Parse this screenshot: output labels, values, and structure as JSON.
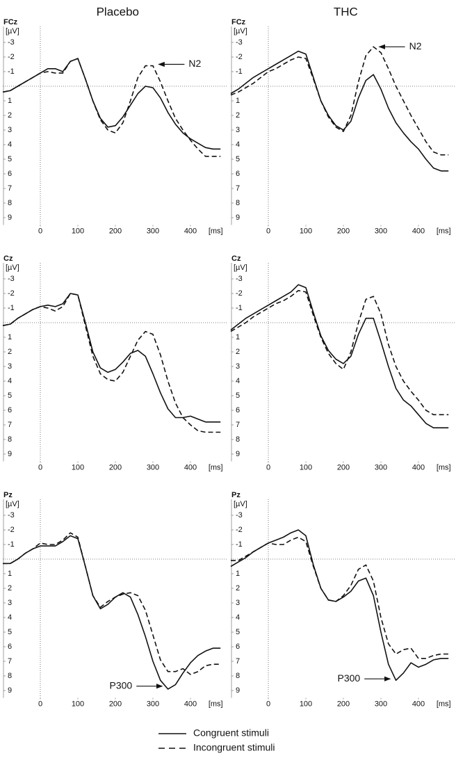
{
  "chart_data": [
    {
      "type": "line",
      "title": "Placebo",
      "channel": "FCz",
      "y_label": "[µV]",
      "x_label": "[ms]",
      "x": [
        -100,
        -80,
        -60,
        -40,
        -20,
        0,
        20,
        40,
        60,
        80,
        100,
        120,
        140,
        160,
        180,
        200,
        220,
        240,
        260,
        280,
        300,
        320,
        340,
        360,
        380,
        400,
        420,
        440,
        460,
        480
      ],
      "series": [
        {
          "name": "Congruent stimuli",
          "color": "#111111",
          "line_style": "solid",
          "values": [
            0.4,
            0.3,
            0,
            -0.3,
            -0.6,
            -0.9,
            -1.2,
            -1.2,
            -1.0,
            -1.7,
            -1.9,
            -0.5,
            1.0,
            2.2,
            2.8,
            2.7,
            2.1,
            1.3,
            0.5,
            0.0,
            0.1,
            0.8,
            1.8,
            2.6,
            3.2,
            3.6,
            3.9,
            4.2,
            4.3,
            4.3
          ]
        },
        {
          "name": "Incongruent stimuli",
          "color": "#111111",
          "line_style": "dashed",
          "values": [
            0.4,
            0.3,
            0,
            -0.3,
            -0.6,
            -0.9,
            -1.0,
            -0.9,
            -0.9,
            -1.7,
            -1.9,
            -0.5,
            1.0,
            2.3,
            3.0,
            3.2,
            2.5,
            1.0,
            -0.6,
            -1.4,
            -1.4,
            -0.3,
            1.0,
            2.2,
            3.0,
            3.7,
            4.3,
            4.8,
            4.8,
            4.8
          ]
        }
      ],
      "xlim": [
        -100,
        490
      ],
      "ylim": [
        -4,
        9.5
      ],
      "xticks": [
        0,
        100,
        200,
        300,
        400
      ],
      "yticks": [
        -3,
        -2,
        -1,
        1,
        2,
        3,
        4,
        5,
        6,
        7,
        8,
        9
      ],
      "y_inverted": true,
      "zero_lines": true,
      "annotations": [
        {
          "text": "N2",
          "x": 310,
          "y": -1.5,
          "side": "right"
        }
      ]
    },
    {
      "type": "line",
      "title": "THC",
      "channel": "FCz",
      "y_label": "[µV]",
      "x_label": "[ms]",
      "x": [
        -100,
        -80,
        -60,
        -40,
        -20,
        0,
        20,
        40,
        60,
        80,
        100,
        120,
        140,
        160,
        180,
        200,
        220,
        240,
        260,
        280,
        300,
        320,
        340,
        360,
        380,
        400,
        420,
        440,
        460,
        480
      ],
      "series": [
        {
          "name": "Congruent stimuli",
          "color": "#111111",
          "line_style": "solid",
          "values": [
            0.5,
            0.2,
            -0.2,
            -0.6,
            -0.9,
            -1.2,
            -1.5,
            -1.8,
            -2.1,
            -2.4,
            -2.2,
            -0.6,
            1.0,
            2.0,
            2.7,
            3.0,
            2.4,
            0.8,
            -0.4,
            -0.8,
            0.2,
            1.5,
            2.5,
            3.2,
            3.8,
            4.3,
            5.0,
            5.6,
            5.8,
            5.8
          ]
        },
        {
          "name": "Incongruent stimuli",
          "color": "#111111",
          "line_style": "dashed",
          "values": [
            0.6,
            0.4,
            0.1,
            -0.2,
            -0.6,
            -1.0,
            -1.2,
            -1.5,
            -1.8,
            -2.0,
            -1.9,
            -0.5,
            1.0,
            2.1,
            2.8,
            3.1,
            2.0,
            -0.3,
            -2.1,
            -2.7,
            -2.3,
            -1.2,
            0,
            1.0,
            2.0,
            2.9,
            3.8,
            4.5,
            4.7,
            4.7
          ]
        }
      ],
      "xlim": [
        -100,
        490
      ],
      "ylim": [
        -4,
        9.5
      ],
      "xticks": [
        0,
        100,
        200,
        300,
        400
      ],
      "yticks": [
        -3,
        -2,
        -1,
        1,
        2,
        3,
        4,
        5,
        6,
        7,
        8,
        9
      ],
      "y_inverted": true,
      "zero_lines": true,
      "annotations": [
        {
          "text": "N2",
          "x": 290,
          "y": -2.7,
          "side": "right"
        }
      ]
    },
    {
      "type": "line",
      "channel": "Cz",
      "y_label": "[µV]",
      "x_label": "[ms]",
      "x": [
        -100,
        -80,
        -60,
        -40,
        -20,
        0,
        20,
        40,
        60,
        80,
        100,
        120,
        140,
        160,
        180,
        200,
        220,
        240,
        260,
        280,
        300,
        320,
        340,
        360,
        380,
        400,
        420,
        440,
        460,
        480
      ],
      "series": [
        {
          "name": "Congruent stimuli",
          "color": "#111111",
          "line_style": "solid",
          "values": [
            0.2,
            0.1,
            -0.3,
            -0.6,
            -0.9,
            -1.1,
            -1.2,
            -1.1,
            -1.3,
            -2.0,
            -1.9,
            0.0,
            2.0,
            3.1,
            3.4,
            3.2,
            2.7,
            2.1,
            1.9,
            2.3,
            3.5,
            4.8,
            5.9,
            6.5,
            6.5,
            6.4,
            6.6,
            6.8,
            6.8,
            6.8
          ]
        },
        {
          "name": "Incongruent stimuli",
          "color": "#111111",
          "line_style": "dashed",
          "values": [
            0.2,
            0.1,
            -0.3,
            -0.6,
            -0.9,
            -1.1,
            -1.0,
            -0.8,
            -1.1,
            -2.0,
            -1.9,
            0.2,
            2.3,
            3.5,
            3.9,
            4.0,
            3.4,
            2.3,
            1.2,
            0.6,
            0.8,
            2.2,
            4.0,
            5.5,
            6.5,
            7.0,
            7.4,
            7.5,
            7.5,
            7.5
          ]
        }
      ],
      "xlim": [
        -100,
        490
      ],
      "ylim": [
        -4,
        9.5
      ],
      "xticks": [
        0,
        100,
        200,
        300,
        400
      ],
      "yticks": [
        -3,
        -2,
        -1,
        1,
        2,
        3,
        4,
        5,
        6,
        7,
        8,
        9
      ],
      "y_inverted": true,
      "zero_lines": true
    },
    {
      "type": "line",
      "channel": "Cz",
      "y_label": "[µV]",
      "x_label": "[ms]",
      "x": [
        -100,
        -80,
        -60,
        -40,
        -20,
        0,
        20,
        40,
        60,
        80,
        100,
        120,
        140,
        160,
        180,
        200,
        220,
        240,
        260,
        280,
        300,
        320,
        340,
        360,
        380,
        400,
        420,
        440,
        460,
        480
      ],
      "series": [
        {
          "name": "Congruent stimuli",
          "color": "#111111",
          "line_style": "solid",
          "values": [
            0.5,
            0.1,
            -0.3,
            -0.6,
            -0.9,
            -1.2,
            -1.5,
            -1.8,
            -2.1,
            -2.6,
            -2.4,
            -0.7,
            0.9,
            1.9,
            2.5,
            2.8,
            2.3,
            0.8,
            -0.3,
            -0.3,
            1.3,
            3.0,
            4.5,
            5.3,
            5.7,
            6.3,
            6.9,
            7.2,
            7.2,
            7.2
          ]
        },
        {
          "name": "Incongruent stimuli",
          "color": "#111111",
          "line_style": "dashed",
          "values": [
            0.6,
            0.3,
            0,
            -0.4,
            -0.7,
            -1.0,
            -1.3,
            -1.5,
            -1.8,
            -2.2,
            -2.1,
            -0.5,
            1.0,
            2.1,
            2.8,
            3.2,
            2.0,
            0.0,
            -1.6,
            -1.8,
            -0.6,
            1.5,
            3.0,
            4.0,
            4.7,
            5.3,
            6.0,
            6.3,
            6.3,
            6.3
          ]
        }
      ],
      "xlim": [
        -100,
        490
      ],
      "ylim": [
        -4,
        9.5
      ],
      "xticks": [
        0,
        100,
        200,
        300,
        400
      ],
      "yticks": [
        -3,
        -2,
        -1,
        1,
        2,
        3,
        4,
        5,
        6,
        7,
        8,
        9
      ],
      "y_inverted": true,
      "zero_lines": true
    },
    {
      "type": "line",
      "channel": "Pz",
      "y_label": "[µV]",
      "x_label": "[ms]",
      "x": [
        -100,
        -80,
        -60,
        -40,
        -20,
        0,
        20,
        40,
        60,
        80,
        100,
        120,
        140,
        160,
        180,
        200,
        220,
        240,
        260,
        280,
        300,
        320,
        340,
        360,
        380,
        400,
        420,
        440,
        460,
        480
      ],
      "series": [
        {
          "name": "Congruent stimuli",
          "color": "#111111",
          "line_style": "solid",
          "values": [
            0.3,
            0.3,
            0,
            -0.4,
            -0.7,
            -0.9,
            -0.9,
            -0.9,
            -1.2,
            -1.6,
            -1.4,
            0.5,
            2.5,
            3.4,
            3.1,
            2.6,
            2.3,
            2.6,
            3.8,
            5.3,
            7.0,
            8.3,
            8.9,
            8.6,
            7.8,
            7.1,
            6.6,
            6.3,
            6.1,
            6.1
          ]
        },
        {
          "name": "Incongruent stimuli",
          "color": "#111111",
          "line_style": "dashed",
          "values": [
            0.3,
            0.3,
            0,
            -0.4,
            -0.7,
            -1.1,
            -1.0,
            -1.0,
            -1.3,
            -1.8,
            -1.5,
            0.5,
            2.5,
            3.3,
            2.9,
            2.6,
            2.4,
            2.3,
            2.5,
            3.5,
            5.2,
            6.9,
            7.7,
            7.7,
            7.5,
            7.9,
            7.7,
            7.3,
            7.2,
            7.2
          ]
        }
      ],
      "xlim": [
        -100,
        490
      ],
      "ylim": [
        -4,
        9.5
      ],
      "xticks": [
        0,
        100,
        200,
        300,
        400
      ],
      "yticks": [
        -3,
        -2,
        -1,
        1,
        2,
        3,
        4,
        5,
        6,
        7,
        8,
        9
      ],
      "y_inverted": true,
      "zero_lines": true,
      "annotations": [
        {
          "text": "P300",
          "x": 330,
          "y": 8.7,
          "side": "left"
        }
      ]
    },
    {
      "type": "line",
      "channel": "Pz",
      "y_label": "[µV]",
      "x_label": "[ms]",
      "x": [
        -100,
        -80,
        -60,
        -40,
        -20,
        0,
        20,
        40,
        60,
        80,
        100,
        120,
        140,
        160,
        180,
        200,
        220,
        240,
        260,
        280,
        300,
        320,
        340,
        360,
        380,
        400,
        420,
        440,
        460,
        480
      ],
      "series": [
        {
          "name": "Congruent stimuli",
          "color": "#111111",
          "line_style": "solid",
          "values": [
            0.5,
            0.2,
            -0.1,
            -0.5,
            -0.8,
            -1.1,
            -1.3,
            -1.5,
            -1.8,
            -2.0,
            -1.6,
            0.4,
            2.0,
            2.8,
            2.9,
            2.6,
            2.2,
            1.5,
            1.3,
            2.5,
            5.0,
            7.2,
            8.3,
            7.8,
            7.1,
            7.4,
            7.2,
            6.9,
            6.8,
            6.8
          ]
        },
        {
          "name": "Incongruent stimuli",
          "color": "#111111",
          "line_style": "dashed",
          "values": [
            0.1,
            0.1,
            -0.2,
            -0.5,
            -0.8,
            -1.1,
            -1.0,
            -1.0,
            -1.3,
            -1.5,
            -1.2,
            0.5,
            2.0,
            2.8,
            2.9,
            2.5,
            1.8,
            0.7,
            0.4,
            1.5,
            4.0,
            5.8,
            6.5,
            6.2,
            6.1,
            6.8,
            6.8,
            6.6,
            6.5,
            6.5
          ]
        }
      ],
      "xlim": [
        -100,
        490
      ],
      "ylim": [
        -4,
        9.5
      ],
      "xticks": [
        0,
        100,
        200,
        300,
        400
      ],
      "yticks": [
        -3,
        -2,
        -1,
        1,
        2,
        3,
        4,
        5,
        6,
        7,
        8,
        9
      ],
      "y_inverted": true,
      "zero_lines": true,
      "annotations": [
        {
          "text": "P300",
          "x": 330,
          "y": 8.2,
          "side": "left"
        }
      ]
    }
  ]
}
